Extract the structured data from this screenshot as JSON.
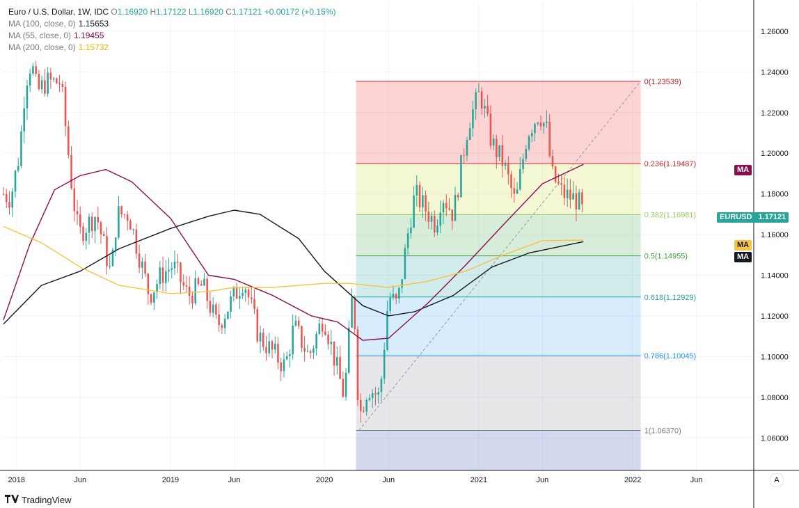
{
  "legend": {
    "title": "Euro / U.S. Dollar, 1W, IDC",
    "open_label": "O",
    "open": "1.16920",
    "high_label": "H",
    "high": "1.17122",
    "low_label": "L",
    "low": "1.16920",
    "close_label": "C",
    "close": "1.17121",
    "change": "+0.00172 (+0.15%)",
    "ma100_label": "MA (100, close, 0)",
    "ma100_value": "1.15653",
    "ma55_label": "MA (55, close, 0)",
    "ma55_value": "1.19455",
    "ma200_label": "MA (200, close, 0)",
    "ma200_value": "1.15732"
  },
  "branding": {
    "name": "TradingView"
  },
  "auto_button": "A",
  "tags": {
    "ma_label": "MA",
    "symbol": "EURUSD",
    "last_price": "1.17121"
  },
  "colors": {
    "up": "#26a69a",
    "down": "#ef5350",
    "ma55": "#880e4f",
    "ma100": "#131722",
    "ma200": "#f5c542",
    "fib_0": "#b71c1c",
    "fib_236": "#c62828",
    "fib_382": "#9ccc65",
    "fib_5": "#43a047",
    "fib_618": "#26a69a",
    "fib_786": "#2196f3",
    "fib_1": "#787b86"
  },
  "chart_data": {
    "type": "candlestick",
    "title": "Euro / U.S. Dollar, 1W, IDC",
    "y_ticks": [
      "1.06000",
      "1.08000",
      "1.10000",
      "1.12000",
      "1.14000",
      "1.16000",
      "1.18000",
      "1.20000",
      "1.22000",
      "1.24000",
      "1.26000"
    ],
    "ylim": [
      1.044,
      1.274
    ],
    "x_ticks": [
      {
        "label": "2018",
        "date": "2018-01-01"
      },
      {
        "label": "Jun",
        "date": "2018-06-01"
      },
      {
        "label": "2019",
        "date": "2019-01-01"
      },
      {
        "label": "Jun",
        "date": "2019-06-01"
      },
      {
        "label": "2020",
        "date": "2020-01-01"
      },
      {
        "label": "Jun",
        "date": "2020-06-01"
      },
      {
        "label": "2021",
        "date": "2021-01-01"
      },
      {
        "label": "Jun",
        "date": "2021-06-01"
      },
      {
        "label": "2022",
        "date": "2022-01-01"
      },
      {
        "label": "Jun",
        "date": "2022-06-01"
      }
    ],
    "xlim": [
      "2017-12-01",
      "2022-10-15"
    ],
    "fib_retracement": {
      "start_date": "2020-03-16",
      "end_date": "2022-01-20",
      "levels": [
        {
          "ratio": "0",
          "price": 1.23539,
          "label": "0(1.23539)"
        },
        {
          "ratio": "0.236",
          "price": 1.19487,
          "label": "0.236(1.19487)"
        },
        {
          "ratio": "0.382",
          "price": 1.16981,
          "label": "0.382(1.16981)"
        },
        {
          "ratio": "0.5",
          "price": 1.14955,
          "label": "0.5(1.14955)"
        },
        {
          "ratio": "0.618",
          "price": 1.12929,
          "label": "0.618(1.12929)"
        },
        {
          "ratio": "0.786",
          "price": 1.10045,
          "label": "0.786(1.10045)"
        },
        {
          "ratio": "1",
          "price": 1.0637,
          "label": "1(1.06370)"
        }
      ],
      "trend_line": {
        "from_date": "2020-03-23",
        "from_price": 1.0637,
        "to_date": "2022-01-20",
        "to_price": 1.23539
      }
    },
    "price_anchors": [
      [
        "2017-12-01",
        1.18
      ],
      [
        "2017-12-18",
        1.178
      ],
      [
        "2018-01-08",
        1.2
      ],
      [
        "2018-01-22",
        1.235
      ],
      [
        "2018-02-05",
        1.245
      ],
      [
        "2018-02-19",
        1.23
      ],
      [
        "2018-03-12",
        1.235
      ],
      [
        "2018-04-16",
        1.235
      ],
      [
        "2018-05-14",
        1.18
      ],
      [
        "2018-05-28",
        1.16
      ],
      [
        "2018-06-18",
        1.165
      ],
      [
        "2018-07-09",
        1.17
      ],
      [
        "2018-08-13",
        1.14
      ],
      [
        "2018-08-27",
        1.17
      ],
      [
        "2018-09-24",
        1.17
      ],
      [
        "2018-11-12",
        1.13
      ],
      [
        "2018-12-10",
        1.14
      ],
      [
        "2019-01-07",
        1.145
      ],
      [
        "2019-02-11",
        1.13
      ],
      [
        "2019-03-18",
        1.135
      ],
      [
        "2019-04-22",
        1.115
      ],
      [
        "2019-06-24",
        1.138
      ],
      [
        "2019-07-29",
        1.11
      ],
      [
        "2019-09-30",
        1.095
      ],
      [
        "2019-10-21",
        1.115
      ],
      [
        "2019-11-25",
        1.1
      ],
      [
        "2019-12-30",
        1.12
      ],
      [
        "2020-02-17",
        1.08
      ],
      [
        "2020-03-09",
        1.135
      ],
      [
        "2020-03-23",
        1.07
      ],
      [
        "2020-04-13",
        1.085
      ],
      [
        "2020-05-11",
        1.08
      ],
      [
        "2020-06-01",
        1.13
      ],
      [
        "2020-06-22",
        1.125
      ],
      [
        "2020-07-20",
        1.165
      ],
      [
        "2020-08-03",
        1.18
      ],
      [
        "2020-09-21",
        1.165
      ],
      [
        "2020-10-05",
        1.18
      ],
      [
        "2020-11-02",
        1.17
      ],
      [
        "2020-12-07",
        1.215
      ],
      [
        "2021-01-04",
        1.23
      ],
      [
        "2021-02-01",
        1.205
      ],
      [
        "2021-03-01",
        1.195
      ],
      [
        "2021-03-29",
        1.175
      ],
      [
        "2021-04-26",
        1.21
      ],
      [
        "2021-05-24",
        1.22
      ],
      [
        "2021-06-14",
        1.21
      ],
      [
        "2021-06-21",
        1.19
      ],
      [
        "2021-07-19",
        1.18
      ],
      [
        "2021-08-23",
        1.177
      ],
      [
        "2021-09-06",
        1.17
      ]
    ],
    "series": [
      {
        "name": "MA (100, close, 0)",
        "last": 1.15653,
        "points": [
          [
            "2017-12-01",
            1.116
          ],
          [
            "2018-03-01",
            1.135
          ],
          [
            "2018-06-01",
            1.142
          ],
          [
            "2018-09-01",
            1.153
          ],
          [
            "2019-01-01",
            1.163
          ],
          [
            "2019-04-01",
            1.169
          ],
          [
            "2019-06-01",
            1.172
          ],
          [
            "2019-08-01",
            1.17
          ],
          [
            "2019-11-01",
            1.158
          ],
          [
            "2020-01-01",
            1.142
          ],
          [
            "2020-04-01",
            1.125
          ],
          [
            "2020-06-01",
            1.12
          ],
          [
            "2020-08-01",
            1.122
          ],
          [
            "2020-11-01",
            1.13
          ],
          [
            "2021-02-01",
            1.144
          ],
          [
            "2021-05-01",
            1.151
          ],
          [
            "2021-09-06",
            1.1565
          ]
        ]
      },
      {
        "name": "MA (55, close, 0)",
        "last": 1.19455,
        "points": [
          [
            "2017-12-01",
            1.118
          ],
          [
            "2018-02-01",
            1.155
          ],
          [
            "2018-04-01",
            1.182
          ],
          [
            "2018-06-01",
            1.189
          ],
          [
            "2018-08-01",
            1.192
          ],
          [
            "2018-10-01",
            1.186
          ],
          [
            "2019-01-01",
            1.168
          ],
          [
            "2019-04-01",
            1.14
          ],
          [
            "2019-06-01",
            1.138
          ],
          [
            "2019-09-01",
            1.13
          ],
          [
            "2019-12-01",
            1.12
          ],
          [
            "2020-02-01",
            1.117
          ],
          [
            "2020-04-01",
            1.108
          ],
          [
            "2020-06-01",
            1.109
          ],
          [
            "2020-09-01",
            1.126
          ],
          [
            "2020-12-01",
            1.145
          ],
          [
            "2021-03-01",
            1.165
          ],
          [
            "2021-06-01",
            1.185
          ],
          [
            "2021-09-06",
            1.1945
          ]
        ]
      },
      {
        "name": "MA (200, close, 0)",
        "last": 1.15732,
        "points": [
          [
            "2017-12-01",
            1.164
          ],
          [
            "2018-03-01",
            1.156
          ],
          [
            "2018-06-01",
            1.144
          ],
          [
            "2018-09-01",
            1.135
          ],
          [
            "2019-01-01",
            1.131
          ],
          [
            "2019-04-01",
            1.132
          ],
          [
            "2019-06-01",
            1.134
          ],
          [
            "2019-09-01",
            1.134
          ],
          [
            "2020-01-01",
            1.136
          ],
          [
            "2020-03-01",
            1.136
          ],
          [
            "2020-06-01",
            1.134
          ],
          [
            "2020-09-01",
            1.137
          ],
          [
            "2020-12-01",
            1.142
          ],
          [
            "2021-03-01",
            1.15
          ],
          [
            "2021-06-01",
            1.157
          ],
          [
            "2021-09-06",
            1.1573
          ]
        ]
      }
    ]
  }
}
